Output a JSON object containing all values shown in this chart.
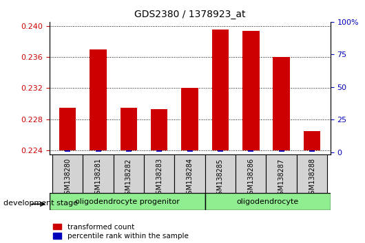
{
  "title": "GDS2380 / 1378923_at",
  "samples": [
    "GSM138280",
    "GSM138281",
    "GSM138282",
    "GSM138283",
    "GSM138284",
    "GSM138285",
    "GSM138286",
    "GSM138287",
    "GSM138288"
  ],
  "transformed_count": [
    0.2295,
    0.237,
    0.2295,
    0.2293,
    0.232,
    0.2395,
    0.2393,
    0.236,
    0.2265
  ],
  "percentile_rank": [
    2,
    2,
    2,
    2,
    2,
    2,
    2,
    2,
    2
  ],
  "ylim_left": [
    0.2235,
    0.2405
  ],
  "ylim_right": [
    -1.7,
    100
  ],
  "yticks_left": [
    0.224,
    0.228,
    0.232,
    0.236,
    0.24
  ],
  "yticks_right": [
    0,
    25,
    50,
    75,
    100
  ],
  "baseline": 0.224,
  "group_boundary": 4.5,
  "bar_color_red": "#CC0000",
  "bar_color_blue": "#0000BB",
  "bar_width": 0.55,
  "blue_bar_width": 0.18,
  "tick_label_color_left": "#CC0000",
  "tick_label_color_right": "#0000BB",
  "legend_items": [
    {
      "color": "#CC0000",
      "label": "transformed count"
    },
    {
      "color": "#0000BB",
      "label": "percentile rank within the sample"
    }
  ],
  "dev_stage_label": "development stage",
  "plot_bg_color": "#FFFFFF",
  "grid_color": "#000000",
  "sample_box_color": "#D3D3D3",
  "group1_color": "#90EE90",
  "group2_color": "#90EE90",
  "group1_label": "oligodendrocyte progenitor",
  "group2_label": "oligodendrocyte"
}
